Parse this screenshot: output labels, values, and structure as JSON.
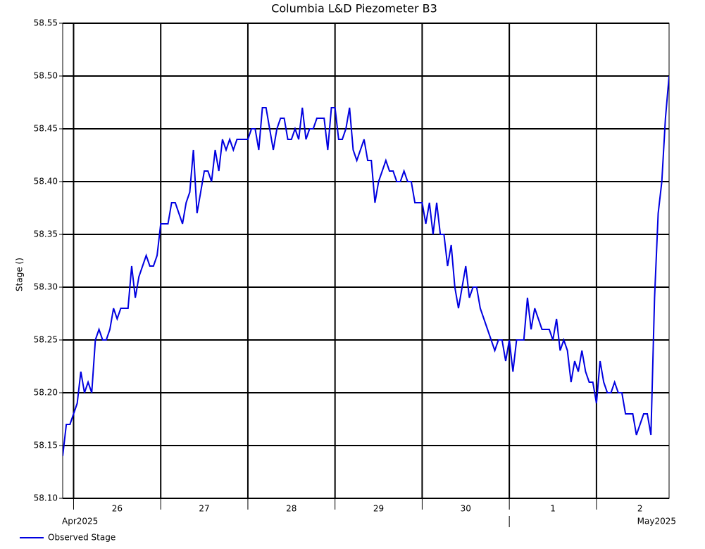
{
  "chart_data": {
    "type": "line",
    "title": "Columbia L&D Piezometer B3",
    "y_label": "Stage ()",
    "xlim": [
      "2025-04-25T21:00",
      "2025-05-02T20:00"
    ],
    "xticks": [
      {
        "value": "2025-04-26T12:00",
        "label": "26"
      },
      {
        "value": "2025-04-27T12:00",
        "label": "27"
      },
      {
        "value": "2025-04-28T12:00",
        "label": "28"
      },
      {
        "value": "2025-04-29T12:00",
        "label": "29"
      },
      {
        "value": "2025-04-30T12:00",
        "label": "30"
      },
      {
        "value": "2025-05-01T12:00",
        "label": "1"
      },
      {
        "value": "2025-05-02T12:00",
        "label": "2"
      }
    ],
    "xgrid": [
      "2025-04-26T00:00",
      "2025-04-27T00:00",
      "2025-04-28T00:00",
      "2025-04-29T00:00",
      "2025-04-30T00:00",
      "2025-05-01T00:00",
      "2025-05-02T00:00"
    ],
    "month_labels": [
      "Apr2025",
      "May2025"
    ],
    "month_boundary": "2025-05-01T00:00",
    "ylim": [
      58.1,
      58.55
    ],
    "yticks": [
      {
        "value": 58.1,
        "label": "58.10"
      },
      58.15,
      {
        "value": 58.2,
        "label": "58.20"
      },
      58.25,
      {
        "value": 58.3,
        "label": "58.30"
      },
      58.35,
      {
        "value": 58.4,
        "label": "58.40"
      },
      58.45,
      {
        "value": 58.5,
        "label": "58.50"
      },
      58.55
    ],
    "grid": true,
    "legend": "bottom-left",
    "x": [
      "2025-04-25T21:00",
      "2025-04-25T22:00",
      "2025-04-25T23:00",
      "2025-04-26T00:00",
      "2025-04-26T01:00",
      "2025-04-26T02:00",
      "2025-04-26T03:00",
      "2025-04-26T04:00",
      "2025-04-26T05:00",
      "2025-04-26T06:00",
      "2025-04-26T07:00",
      "2025-04-26T08:00",
      "2025-04-26T09:00",
      "2025-04-26T10:00",
      "2025-04-26T11:00",
      "2025-04-26T12:00",
      "2025-04-26T13:00",
      "2025-04-26T14:00",
      "2025-04-26T15:00",
      "2025-04-26T16:00",
      "2025-04-26T17:00",
      "2025-04-26T18:00",
      "2025-04-26T19:00",
      "2025-04-26T20:00",
      "2025-04-26T21:00",
      "2025-04-26T22:00",
      "2025-04-26T23:00",
      "2025-04-27T00:00",
      "2025-04-27T01:00",
      "2025-04-27T02:00",
      "2025-04-27T03:00",
      "2025-04-27T04:00",
      "2025-04-27T05:00",
      "2025-04-27T06:00",
      "2025-04-27T07:00",
      "2025-04-27T08:00",
      "2025-04-27T09:00",
      "2025-04-27T10:00",
      "2025-04-27T11:00",
      "2025-04-27T12:00",
      "2025-04-27T13:00",
      "2025-04-27T14:00",
      "2025-04-27T15:00",
      "2025-04-27T16:00",
      "2025-04-27T17:00",
      "2025-04-27T18:00",
      "2025-04-27T19:00",
      "2025-04-27T20:00",
      "2025-04-27T21:00",
      "2025-04-27T22:00",
      "2025-04-27T23:00",
      "2025-04-28T00:00",
      "2025-04-28T01:00",
      "2025-04-28T02:00",
      "2025-04-28T03:00",
      "2025-04-28T04:00",
      "2025-04-28T05:00",
      "2025-04-28T06:00",
      "2025-04-28T07:00",
      "2025-04-28T08:00",
      "2025-04-28T09:00",
      "2025-04-28T10:00",
      "2025-04-28T11:00",
      "2025-04-28T12:00",
      "2025-04-28T13:00",
      "2025-04-28T14:00",
      "2025-04-28T15:00",
      "2025-04-28T16:00",
      "2025-04-28T17:00",
      "2025-04-28T18:00",
      "2025-04-28T19:00",
      "2025-04-28T20:00",
      "2025-04-28T21:00",
      "2025-04-28T22:00",
      "2025-04-28T23:00",
      "2025-04-29T00:00",
      "2025-04-29T01:00",
      "2025-04-29T02:00",
      "2025-04-29T03:00",
      "2025-04-29T04:00",
      "2025-04-29T05:00",
      "2025-04-29T06:00",
      "2025-04-29T07:00",
      "2025-04-29T08:00",
      "2025-04-29T09:00",
      "2025-04-29T10:00",
      "2025-04-29T11:00",
      "2025-04-29T12:00",
      "2025-04-29T13:00",
      "2025-04-29T14:00",
      "2025-04-29T15:00",
      "2025-04-29T16:00",
      "2025-04-29T17:00",
      "2025-04-29T18:00",
      "2025-04-29T19:00",
      "2025-04-29T20:00",
      "2025-04-29T21:00",
      "2025-04-29T22:00",
      "2025-04-29T23:00",
      "2025-04-30T00:00",
      "2025-04-30T01:00",
      "2025-04-30T02:00",
      "2025-04-30T03:00",
      "2025-04-30T04:00",
      "2025-04-30T05:00",
      "2025-04-30T06:00",
      "2025-04-30T07:00",
      "2025-04-30T08:00",
      "2025-04-30T09:00",
      "2025-04-30T10:00",
      "2025-04-30T11:00",
      "2025-04-30T12:00",
      "2025-04-30T13:00",
      "2025-04-30T14:00",
      "2025-04-30T15:00",
      "2025-04-30T16:00",
      "2025-04-30T17:00",
      "2025-04-30T18:00",
      "2025-04-30T19:00",
      "2025-04-30T20:00",
      "2025-04-30T21:00",
      "2025-04-30T22:00",
      "2025-04-30T23:00",
      "2025-05-01T00:00",
      "2025-05-01T01:00",
      "2025-05-01T02:00",
      "2025-05-01T03:00",
      "2025-05-01T04:00",
      "2025-05-01T05:00",
      "2025-05-01T06:00",
      "2025-05-01T07:00",
      "2025-05-01T08:00",
      "2025-05-01T09:00",
      "2025-05-01T10:00",
      "2025-05-01T11:00",
      "2025-05-01T12:00",
      "2025-05-01T13:00",
      "2025-05-01T14:00",
      "2025-05-01T15:00",
      "2025-05-01T16:00",
      "2025-05-01T17:00",
      "2025-05-01T18:00",
      "2025-05-01T19:00",
      "2025-05-01T20:00",
      "2025-05-01T21:00",
      "2025-05-01T22:00",
      "2025-05-01T23:00",
      "2025-05-02T00:00",
      "2025-05-02T01:00",
      "2025-05-02T02:00",
      "2025-05-02T03:00",
      "2025-05-02T04:00",
      "2025-05-02T05:00",
      "2025-05-02T06:00",
      "2025-05-02T07:00",
      "2025-05-02T08:00",
      "2025-05-02T09:00",
      "2025-05-02T10:00",
      "2025-05-02T11:00",
      "2025-05-02T12:00",
      "2025-05-02T13:00",
      "2025-05-02T14:00",
      "2025-05-02T15:00",
      "2025-05-02T16:00",
      "2025-05-02T17:00",
      "2025-05-02T18:00",
      "2025-05-02T19:00",
      "2025-05-02T20:00"
    ],
    "series": [
      {
        "name": "Observed Stage",
        "color": "#0000e0",
        "values": [
          58.14,
          58.17,
          58.17,
          58.18,
          58.19,
          58.22,
          58.2,
          58.21,
          58.2,
          58.25,
          58.26,
          58.25,
          58.25,
          58.26,
          58.28,
          58.27,
          58.28,
          58.28,
          58.28,
          58.32,
          58.29,
          58.31,
          58.32,
          58.33,
          58.32,
          58.32,
          58.33,
          58.36,
          58.36,
          58.36,
          58.38,
          58.38,
          58.37,
          58.36,
          58.38,
          58.39,
          58.43,
          58.37,
          58.39,
          58.41,
          58.41,
          58.4,
          58.43,
          58.41,
          58.44,
          58.43,
          58.44,
          58.43,
          58.44,
          58.44,
          58.44,
          58.44,
          58.45,
          58.45,
          58.43,
          58.47,
          58.47,
          58.45,
          58.43,
          58.45,
          58.46,
          58.46,
          58.44,
          58.44,
          58.45,
          58.44,
          58.47,
          58.44,
          58.45,
          58.45,
          58.46,
          58.46,
          58.46,
          58.43,
          58.47,
          58.47,
          58.44,
          58.44,
          58.45,
          58.47,
          58.43,
          58.42,
          58.43,
          58.44,
          58.42,
          58.42,
          58.38,
          58.4,
          58.41,
          58.42,
          58.41,
          58.41,
          58.4,
          58.4,
          58.41,
          58.4,
          58.4,
          58.38,
          58.38,
          58.38,
          58.36,
          58.38,
          58.35,
          58.38,
          58.35,
          58.35,
          58.32,
          58.34,
          58.3,
          58.28,
          58.3,
          58.32,
          58.29,
          58.3,
          58.3,
          58.28,
          58.27,
          58.26,
          58.25,
          58.24,
          58.25,
          58.25,
          58.23,
          58.25,
          58.22,
          58.25,
          58.25,
          58.25,
          58.29,
          58.26,
          58.28,
          58.27,
          58.26,
          58.26,
          58.26,
          58.25,
          58.27,
          58.24,
          58.25,
          58.24,
          58.21,
          58.23,
          58.22,
          58.24,
          58.22,
          58.21,
          58.21,
          58.19,
          58.23,
          58.21,
          58.2,
          58.2,
          58.21,
          58.2,
          58.2,
          58.18,
          58.18,
          58.18,
          58.16,
          58.17,
          58.18,
          58.18,
          58.16,
          58.29,
          58.37,
          58.4,
          58.46,
          58.5
        ]
      }
    ]
  }
}
